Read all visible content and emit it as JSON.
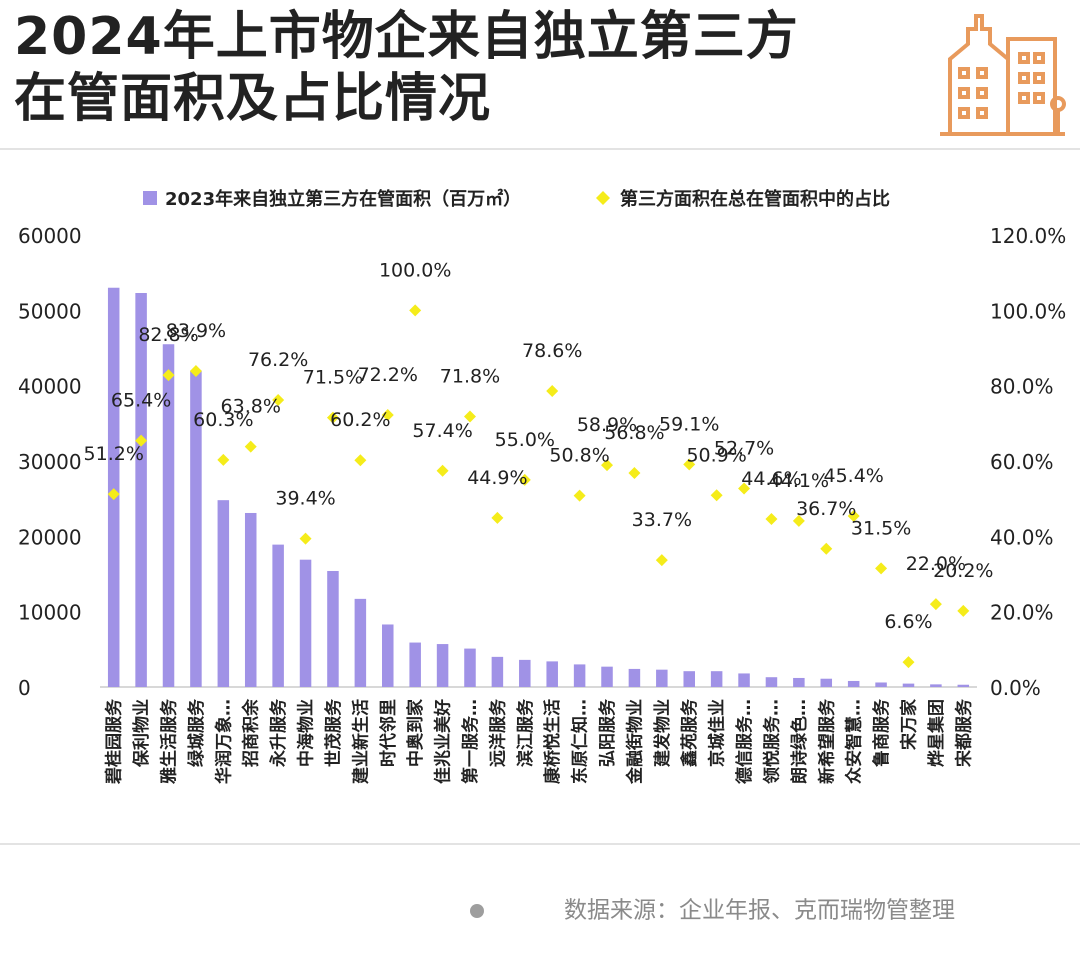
{
  "header": {
    "title_line1": "2024年上市物企来自独立第三方",
    "title_line2": "在管面积及占比情况"
  },
  "logo": {
    "icon": "buildings-icon",
    "color": "#e89a5c"
  },
  "footer": {
    "source": "数据来源：企业年报、克而瑞物管整理"
  },
  "colors": {
    "bar": "#a092e6",
    "point": "#f5ec1a",
    "axis": "#cccccc"
  },
  "chart_data": {
    "type": "bar",
    "title": "",
    "legend": {
      "placement": "top",
      "bar_label": "2023年来自独立第三方在管面积（百万㎡）",
      "point_label": "第三方面积在总在管面积中的占比"
    },
    "categories": [
      "碧桂园服务",
      "保利物业",
      "雅生活服务",
      "绿城服务",
      "华润万象…",
      "招商积余",
      "永升服务",
      "中海物业",
      "世茂服务",
      "建业新生活",
      "时代邻里",
      "中奥到家",
      "佳兆业美好",
      "第一服务…",
      "远洋服务",
      "滨江服务",
      "康桥悦生活",
      "东原仁知…",
      "弘阳服务",
      "金融街物业",
      "建发物业",
      "鑫苑服务",
      "京城佳业",
      "德信服务…",
      "领悦服务…",
      "朗诗绿色…",
      "新希望服务",
      "众安智慧…",
      "鲁商服务",
      "宋万家",
      "烨星集团",
      "宋都服务"
    ],
    "series": [
      {
        "name": "2023年来自独立第三方在管面积（百万㎡）",
        "type": "bar",
        "axis": "left",
        "values": [
          53000,
          52300,
          45500,
          42000,
          24800,
          23100,
          18900,
          16900,
          15400,
          11700,
          8300,
          5900,
          5700,
          5100,
          4000,
          3600,
          3400,
          3000,
          2700,
          2400,
          2300,
          2100,
          2100,
          1800,
          1300,
          1200,
          1100,
          800,
          600,
          450,
          350,
          300
        ]
      },
      {
        "name": "第三方面积在总在管面积中的占比",
        "type": "scatter",
        "axis": "right",
        "values": [
          51.2,
          65.4,
          82.8,
          83.9,
          60.3,
          63.8,
          76.2,
          39.4,
          71.5,
          60.2,
          72.2,
          100.0,
          57.4,
          71.8,
          44.9,
          55.0,
          78.6,
          50.8,
          58.9,
          56.8,
          33.7,
          59.1,
          50.9,
          52.7,
          44.6,
          44.1,
          36.7,
          45.4,
          31.5,
          6.6,
          22.0,
          20.2
        ],
        "labels": [
          "51.2%",
          "65.4%",
          "82.8%",
          "83.9%",
          "60.3%",
          "63.8%",
          "76.2%",
          "39.4%",
          "71.5%",
          "60.2%",
          "72.2%",
          "100.0%",
          "57.4%",
          "71.8%",
          "44.9%",
          "55.0%",
          "78.6%",
          "50.8%",
          "58.9%",
          "56.8%",
          "33.7%",
          "59.1%",
          "50.9%",
          "52.7%",
          "44.6%",
          "44.1%",
          "36.7%",
          "45.4%",
          "31.5%",
          "6.6%",
          "22.0%",
          "20.2%"
        ]
      }
    ],
    "y_left": {
      "ylim": [
        0,
        60000
      ],
      "ticks": [
        "0",
        "10000",
        "20000",
        "30000",
        "40000",
        "50000",
        "60000"
      ]
    },
    "y_right": {
      "ylim": [
        0,
        120
      ],
      "ticks": [
        "0.0%",
        "20.0%",
        "40.0%",
        "60.0%",
        "80.0%",
        "100.0%",
        "120.0%"
      ]
    },
    "grid": false
  }
}
